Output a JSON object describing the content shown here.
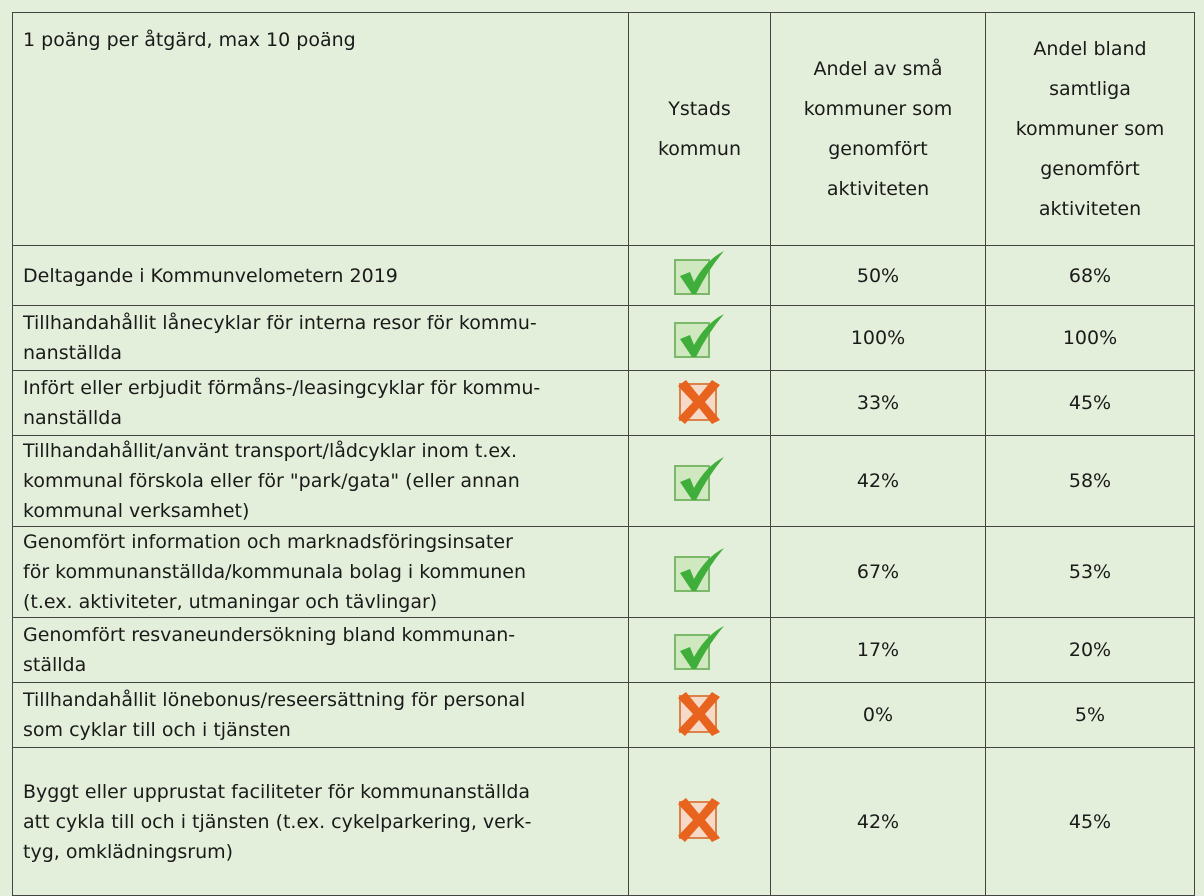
{
  "table": {
    "header": [
      "1 poäng per åtgärd, max 10 poäng",
      "Ystads kommun",
      "Andel av små kommuner som genomfört aktiviteten",
      "Andel bland samtliga kommuner som genomfört aktiviteten"
    ],
    "rows": [
      {
        "label": [
          "Deltagande i Kommunvelometern 2019"
        ],
        "done": true,
        "small": "50%",
        "all": "68%"
      },
      {
        "label": [
          "Tillhandahållit lånecyklar för interna resor för kommu-",
          "nanställda"
        ],
        "done": true,
        "small": "100%",
        "all": "100%"
      },
      {
        "label": [
          "Infört eller erbjudit förmåns-/leasingcyklar för kommu-",
          "nanställda"
        ],
        "done": false,
        "small": "33%",
        "all": "45%"
      },
      {
        "label": [
          "Tillhandahållit/använt transport/lådcyklar inom t.ex.",
          "kommunal förskola eller för \"park/gata\" (eller annan",
          "kommunal verksamhet)"
        ],
        "done": true,
        "small": "42%",
        "all": "58%"
      },
      {
        "label": [
          "Genomfört information och marknadsföringsinsater",
          "för kommunanställda/kommunala bolag i kommunen",
          "(t.ex. aktiviteter, utmaningar och tävlingar)"
        ],
        "done": true,
        "small": "67%",
        "all": "53%"
      },
      {
        "label": [
          "Genomfört resvaneundersökning bland kommunan-",
          "ställda"
        ],
        "done": true,
        "small": "17%",
        "all": "20%"
      },
      {
        "label": [
          "Tillhandahållit lönebonus/reseersättning för personal",
          "som cyklar till och i tjänsten"
        ],
        "done": false,
        "small": "0%",
        "all": "5%"
      },
      {
        "label": [
          "Byggt eller upprustat faciliteter för kommunanställda",
          "att cykla till och i tjänsten (t.ex. cykelparkering, verk-",
          "tyg, omklädningsrum)"
        ],
        "done": false,
        "small": "42%",
        "all": "45%"
      }
    ]
  }
}
